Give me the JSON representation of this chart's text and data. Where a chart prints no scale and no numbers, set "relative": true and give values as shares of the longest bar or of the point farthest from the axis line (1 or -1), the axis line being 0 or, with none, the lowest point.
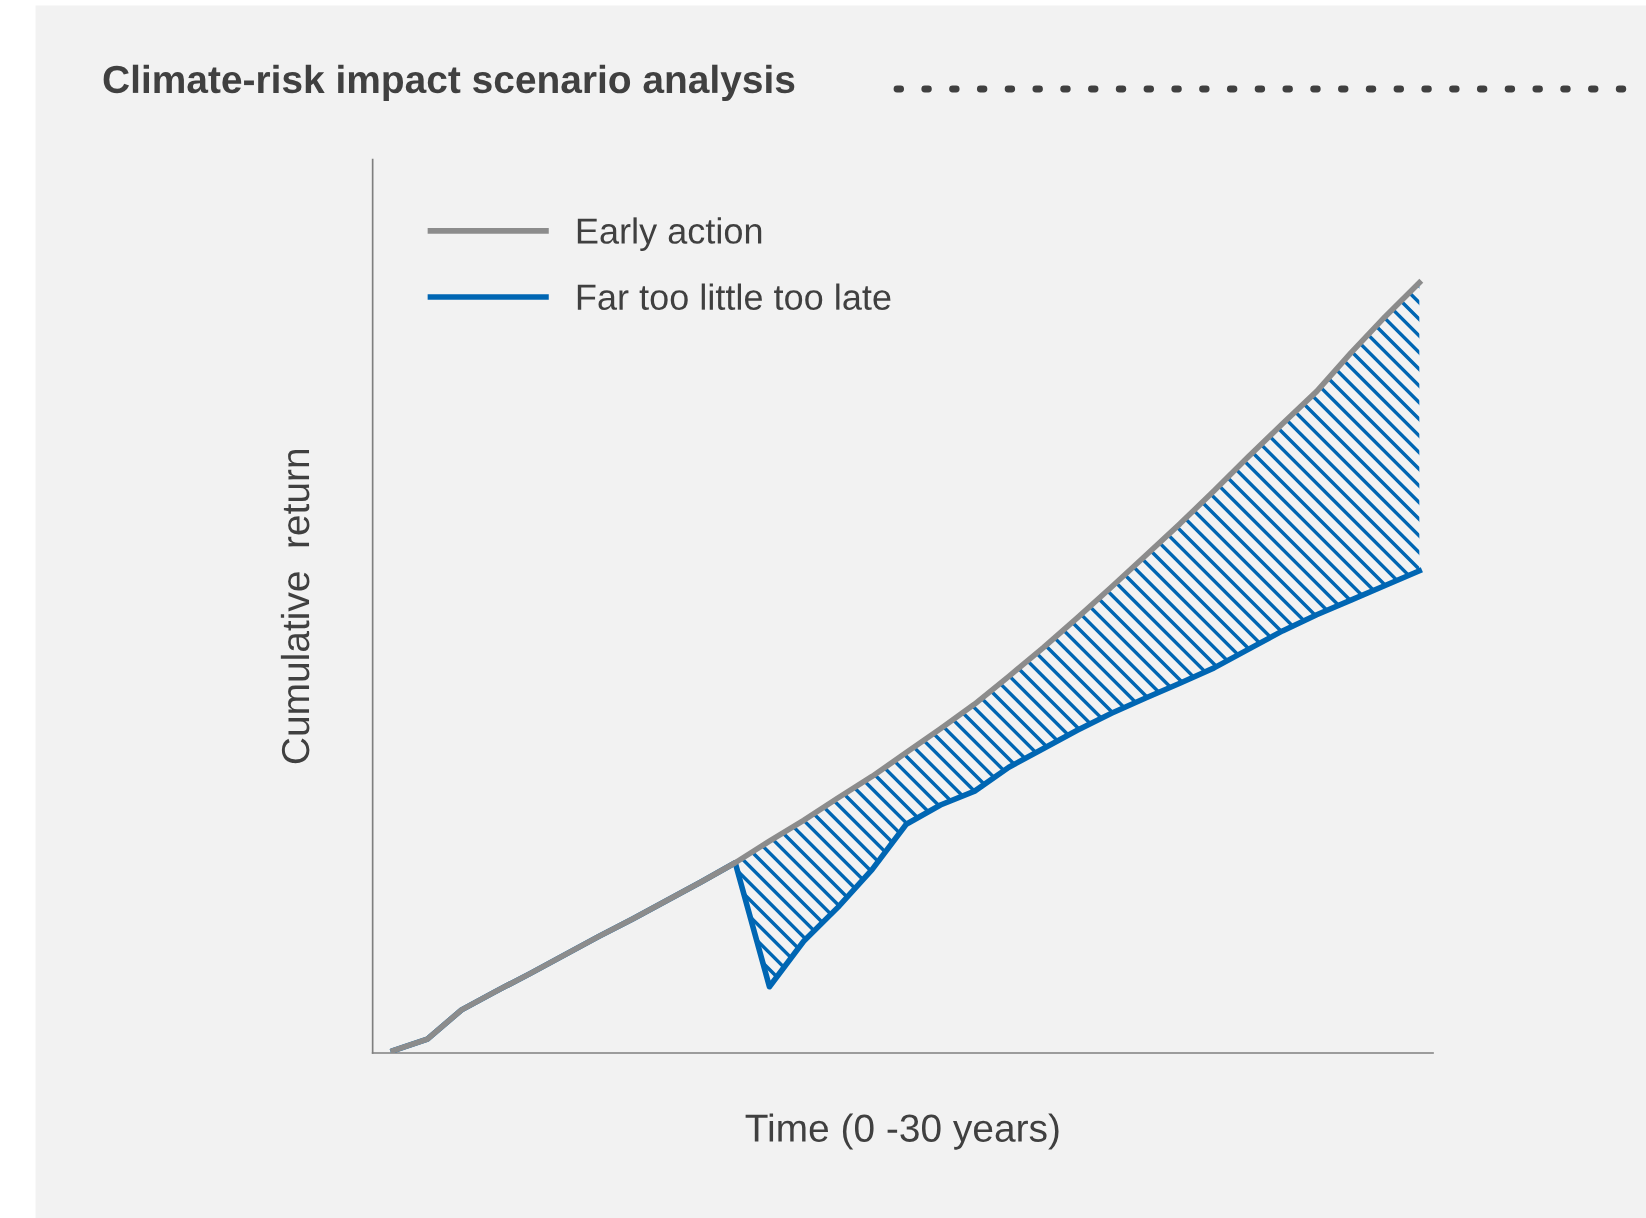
{
  "chart_data": {
    "type": "line",
    "title": "Climate-risk impact scenario analysis",
    "xlabel": "Time (0 -30 years)",
    "ylabel": "Cumulative  return",
    "relative": true,
    "categories": [
      null,
      null,
      null,
      null,
      null,
      null,
      null,
      null,
      null,
      null,
      null,
      null,
      null,
      null,
      null,
      null,
      null,
      null,
      null,
      null,
      null,
      null,
      null,
      null,
      null,
      null,
      null,
      null,
      null,
      null,
      null
    ],
    "series": [
      {
        "name": "Early action",
        "color": "#8c8c8c",
        "values": [
          0.003,
          0.018,
          0.056,
          0.08,
          0.103,
          0.127,
          0.151,
          0.174,
          0.198,
          0.222,
          0.247,
          0.275,
          0.302,
          0.331,
          0.359,
          0.39,
          0.421,
          0.453,
          0.489,
          0.526,
          0.565,
          0.605,
          0.646,
          0.687,
          0.73,
          0.774,
          0.817,
          0.859,
          0.909,
          0.956,
          1
        ]
      },
      {
        "name": "Far too little too late",
        "color": "#0066b3",
        "values": [
          0.003,
          0.018,
          0.056,
          0.08,
          0.103,
          0.127,
          0.151,
          0.174,
          0.198,
          0.222,
          0.247,
          0.086,
          0.145,
          0.189,
          0.238,
          0.297,
          0.322,
          0.34,
          0.371,
          0.395,
          0.419,
          0.441,
          0.461,
          0.48,
          0.5,
          0.524,
          0.548,
          0.569,
          0.588,
          0.607,
          0.626
        ],
        "lower": [
          0.003,
          0.018,
          0.056,
          0.08,
          0.103,
          0.127,
          0.151,
          0.174,
          0.198,
          0.222,
          0.247,
          0.086,
          0.145,
          0.189,
          0.238,
          0.297,
          0.322,
          0.34,
          0.371,
          0.395,
          0.419,
          0.441,
          0.461,
          0.48,
          0.5,
          0.524,
          0.548,
          0.569,
          0.588,
          0.607,
          0.626
        ],
        "upper": [
          0.003,
          0.018,
          0.056,
          0.08,
          0.103,
          0.127,
          0.151,
          0.174,
          0.198,
          0.222,
          0.247,
          0.275,
          0.302,
          0.331,
          0.359,
          0.39,
          0.421,
          0.453,
          0.489,
          0.526,
          0.565,
          0.605,
          0.646,
          0.687,
          0.73,
          0.774,
          0.817,
          0.859,
          0.909,
          0.956,
          1
        ]
      }
    ],
    "legend": "top left",
    "grid": false,
    "marker": "none",
    "line_style": "solid"
  }
}
